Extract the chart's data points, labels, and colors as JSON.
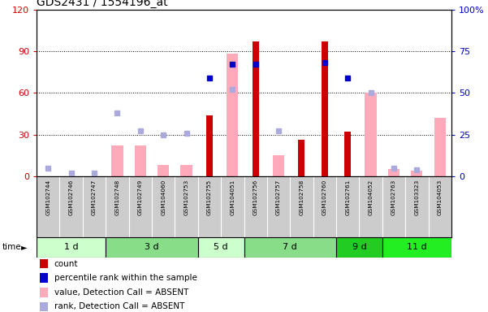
{
  "title": "GDS2431 / 1554196_at",
  "samples": [
    "GSM102744",
    "GSM102746",
    "GSM102747",
    "GSM102748",
    "GSM102749",
    "GSM104060",
    "GSM102753",
    "GSM102755",
    "GSM104051",
    "GSM102756",
    "GSM102757",
    "GSM102758",
    "GSM102760",
    "GSM102761",
    "GSM104052",
    "GSM102763",
    "GSM103323",
    "GSM104053"
  ],
  "n_samples": 18,
  "count": [
    null,
    null,
    null,
    null,
    null,
    null,
    null,
    44,
    null,
    97,
    null,
    26,
    97,
    32,
    null,
    null,
    null,
    null
  ],
  "percentile_rank": [
    null,
    null,
    null,
    null,
    null,
    null,
    null,
    59,
    67,
    67,
    null,
    null,
    68,
    59,
    null,
    null,
    null,
    null
  ],
  "value_absent": [
    null,
    null,
    null,
    22,
    22,
    8,
    8,
    null,
    88,
    null,
    15,
    null,
    null,
    null,
    60,
    5,
    4,
    42
  ],
  "rank_absent": [
    5,
    2,
    2,
    38,
    27,
    25,
    26,
    null,
    52,
    null,
    27,
    null,
    null,
    null,
    50,
    5,
    4,
    null
  ],
  "ylim_left": [
    0,
    120
  ],
  "ylim_right": [
    0,
    100
  ],
  "yticks_left": [
    0,
    30,
    60,
    90,
    120
  ],
  "yticks_right": [
    0,
    25,
    50,
    75,
    100
  ],
  "ytick_labels_left": [
    "0",
    "30",
    "60",
    "90",
    "120"
  ],
  "ytick_labels_right": [
    "0",
    "25",
    "50",
    "75",
    "100%"
  ],
  "left_color": "#cc0000",
  "right_color": "#0000cc",
  "group_defs": [
    {
      "label": "1 d",
      "start": 0,
      "end": 2,
      "color": "#ccffcc"
    },
    {
      "label": "3 d",
      "start": 3,
      "end": 6,
      "color": "#88dd88"
    },
    {
      "label": "5 d",
      "start": 7,
      "end": 8,
      "color": "#ccffcc"
    },
    {
      "label": "7 d",
      "start": 9,
      "end": 12,
      "color": "#88dd88"
    },
    {
      "label": "9 d",
      "start": 13,
      "end": 14,
      "color": "#22cc22"
    },
    {
      "label": "11 d",
      "start": 15,
      "end": 17,
      "color": "#22ee22"
    }
  ],
  "legend_items": [
    {
      "color": "#cc0000",
      "marker": "square",
      "label": "count"
    },
    {
      "color": "#0000cc",
      "marker": "square",
      "label": "percentile rank within the sample"
    },
    {
      "color": "#ffaabb",
      "marker": "square",
      "label": "value, Detection Call = ABSENT"
    },
    {
      "color": "#aaaadd",
      "marker": "square",
      "label": "rank, Detection Call = ABSENT"
    }
  ],
  "sample_label_bg": "#cccccc",
  "chart_bg": "#ffffff",
  "count_color": "#cc0000",
  "absent_value_color": "#ffaabb",
  "percentile_color": "#0000cc",
  "absent_rank_color": "#aaaadd"
}
